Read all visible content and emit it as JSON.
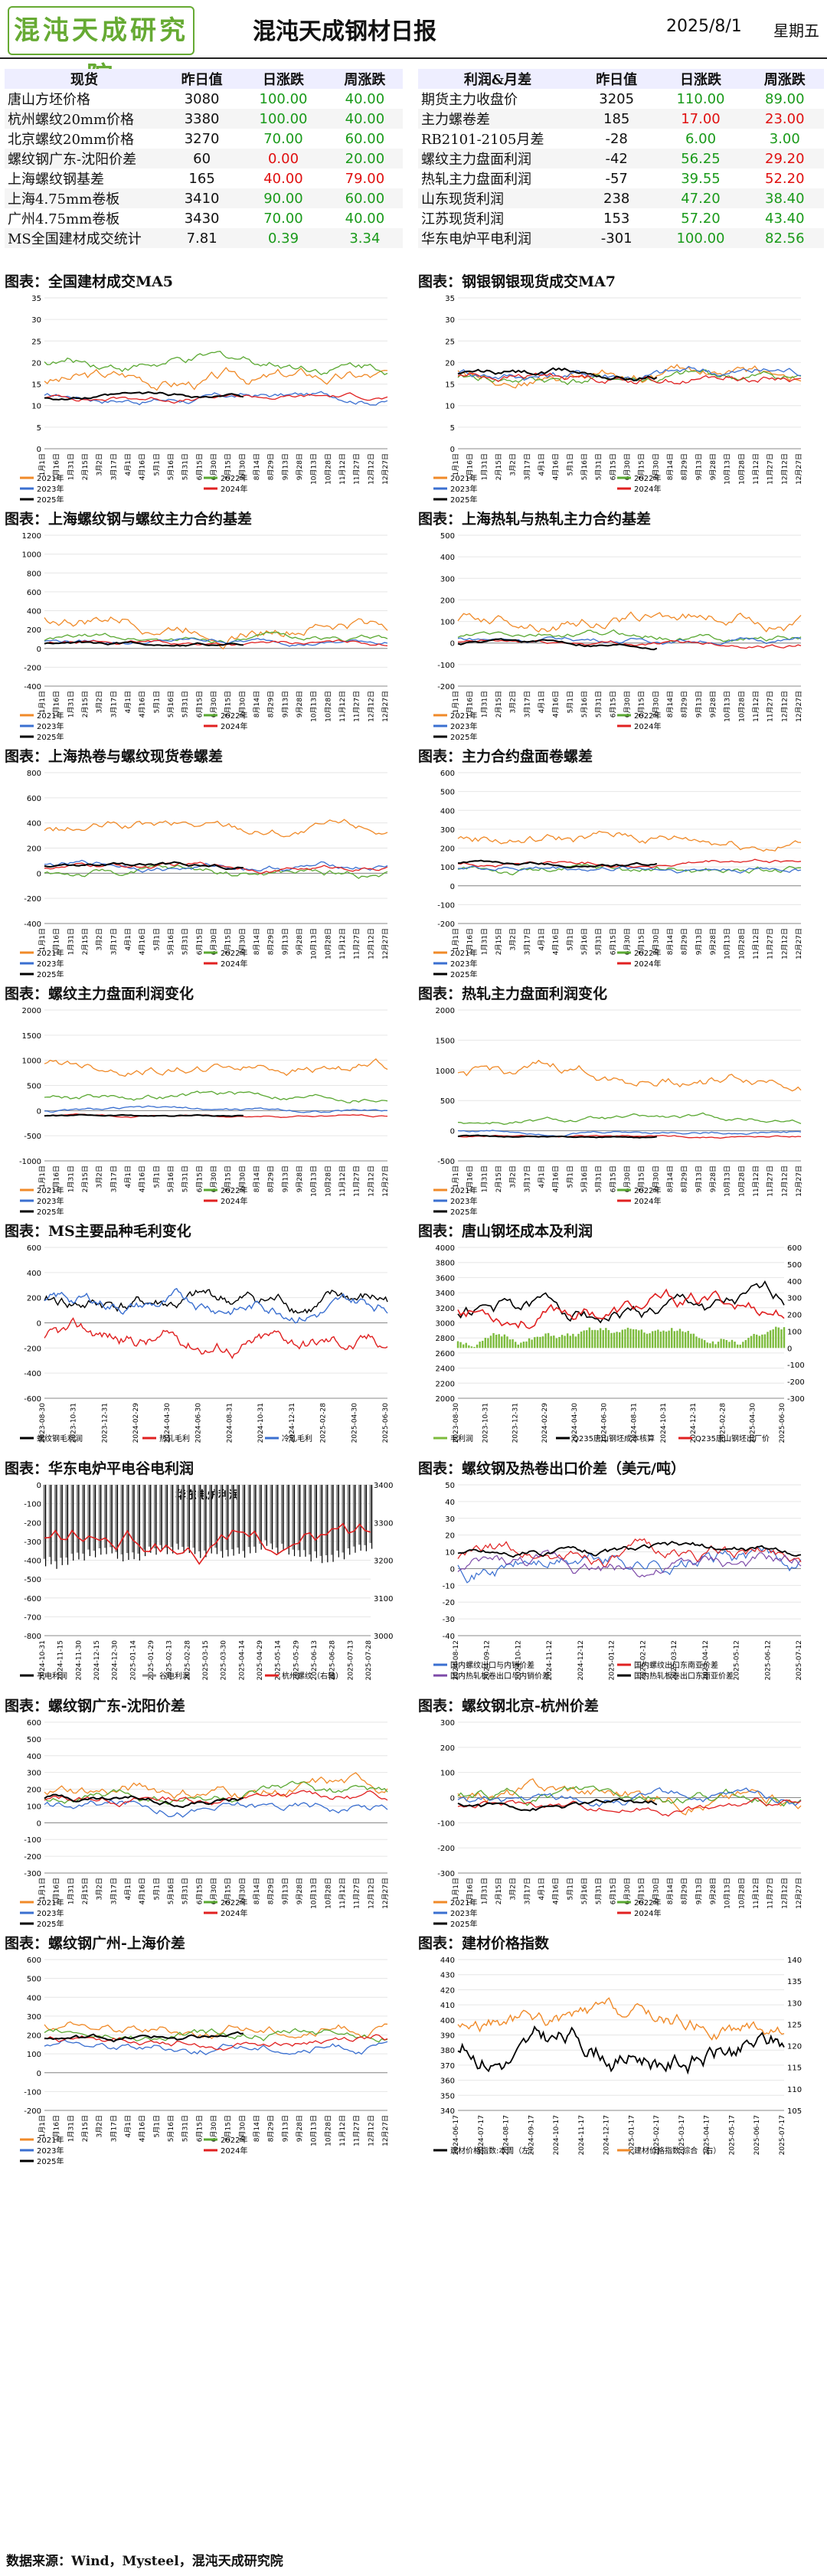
{
  "header": {
    "logo_text": "混沌天成研究院",
    "title": "混沌天成钢材日报",
    "date": "2025/8/1",
    "weekday": "星期五"
  },
  "left_table": {
    "headers": [
      "现货",
      "昨日值",
      "日涨跌",
      "周涨跌"
    ],
    "rows": [
      {
        "name": "唐山方坯价格",
        "value": "3080",
        "day": "100.00",
        "week": "40.00",
        "day_color": "#1a9a1a",
        "week_color": "#1a9a1a"
      },
      {
        "name": "杭州螺纹20mm价格",
        "value": "3380",
        "day": "100.00",
        "week": "40.00",
        "day_color": "#1a9a1a",
        "week_color": "#1a9a1a"
      },
      {
        "name": "北京螺纹20mm价格",
        "value": "3270",
        "day": "70.00",
        "week": "60.00",
        "day_color": "#1a9a1a",
        "week_color": "#1a9a1a"
      },
      {
        "name": "螺纹钢广东-沈阳价差",
        "value": "60",
        "day": "0.00",
        "week": "20.00",
        "day_color": "#e01010",
        "week_color": "#1a9a1a"
      },
      {
        "name": "上海螺纹钢基差",
        "value": "165",
        "day": "40.00",
        "week": "79.00",
        "day_color": "#e01010",
        "week_color": "#e01010"
      },
      {
        "name": "上海4.75mm卷板",
        "value": "3410",
        "day": "90.00",
        "week": "60.00",
        "day_color": "#1a9a1a",
        "week_color": "#1a9a1a"
      },
      {
        "name": "广州4.75mm卷板",
        "value": "3430",
        "day": "70.00",
        "week": "40.00",
        "day_color": "#1a9a1a",
        "week_color": "#1a9a1a"
      },
      {
        "name": "MS全国建材成交统计",
        "value": "7.81",
        "day": "0.39",
        "week": "3.34",
        "day_color": "#1a9a1a",
        "week_color": "#1a9a1a"
      }
    ]
  },
  "right_table": {
    "headers": [
      "利润&月差",
      "昨日值",
      "日涨跌",
      "周涨跌"
    ],
    "rows": [
      {
        "name": "期货主力收盘价",
        "value": "3205",
        "day": "110.00",
        "week": "89.00",
        "day_color": "#1a9a1a",
        "week_color": "#1a9a1a"
      },
      {
        "name": "主力螺卷差",
        "value": "185",
        "day": "17.00",
        "week": "23.00",
        "day_color": "#e01010",
        "week_color": "#e01010"
      },
      {
        "name": "RB2101-2105月差",
        "value": "-28",
        "day": "6.00",
        "week": "3.00",
        "day_color": "#1a9a1a",
        "week_color": "#1a9a1a"
      },
      {
        "name": "螺纹主力盘面利润",
        "value": "-42",
        "day": "56.25",
        "week": "29.20",
        "day_color": "#1a9a1a",
        "week_color": "#e01010"
      },
      {
        "name": "热轧主力盘面利润",
        "value": "-57",
        "day": "39.55",
        "week": "52.20",
        "day_color": "#1a9a1a",
        "week_color": "#e01010"
      },
      {
        "name": "山东现货利润",
        "value": "238",
        "day": "47.20",
        "week": "38.40",
        "day_color": "#1a9a1a",
        "week_color": "#1a9a1a"
      },
      {
        "name": "江苏现货利润",
        "value": "153",
        "day": "57.20",
        "week": "43.40",
        "day_color": "#1a9a1a",
        "week_color": "#1a9a1a"
      },
      {
        "name": "华东电炉平电利润",
        "value": "-301",
        "day": "100.00",
        "week": "82.56",
        "day_color": "#1a9a1a",
        "week_color": "#1a9a1a"
      }
    ]
  },
  "seasonal_legend": [
    "2021年",
    "2022年",
    "2023年",
    "2024年",
    "2025年"
  ],
  "seasonal_colors": [
    "#f08a28",
    "#5aa832",
    "#3a6fd0",
    "#e02020",
    "#000000"
  ],
  "month_ticks": [
    "1月1日",
    "1月16日",
    "1月31日",
    "2月15日",
    "3月2日",
    "3月17日",
    "4月1日",
    "4月16日",
    "5月1日",
    "5月16日",
    "5月31日",
    "6月15日",
    "6月30日",
    "7月15日",
    "7月30日",
    "8月14日",
    "8月29日",
    "9月13日",
    "9月28日",
    "10月13日",
    "10月28日",
    "11月12日",
    "11月27日",
    "12月12日",
    "12月27日"
  ],
  "charts": [
    {
      "id": "c1",
      "title": "图表：全国建材成交MA5",
      "kind": "seasonal",
      "ymin": 0,
      "ymax": 35,
      "yticks": [
        0,
        5,
        10,
        15,
        20,
        25,
        30,
        35
      ],
      "base": [
        16,
        20,
        12,
        12
      ],
      "amp": [
        8,
        6,
        4,
        3
      ]
    },
    {
      "id": "c2",
      "title": "图表：钢银钢银现货成交MA7",
      "kind": "seasonal",
      "ymin": 0,
      "ymax": 35,
      "yticks": [
        0,
        5,
        10,
        15,
        20,
        25,
        30,
        35
      ],
      "base": [
        18,
        16,
        18,
        17
      ],
      "amp": [
        7,
        6,
        6,
        5
      ]
    },
    {
      "id": "c3",
      "title": "图表：上海螺纹钢与螺纹主力合约基差",
      "kind": "seasonal",
      "ymin": -400,
      "ymax": 1200,
      "yticks": [
        -400,
        -200,
        0,
        200,
        400,
        600,
        800,
        1000,
        1200
      ],
      "base": [
        300,
        100,
        80,
        50
      ],
      "amp": [
        350,
        150,
        120,
        100
      ]
    },
    {
      "id": "c4",
      "title": "图表：上海热轧与热轧主力合约基差",
      "kind": "seasonal",
      "ymin": -200,
      "ymax": 500,
      "yticks": [
        -200,
        -100,
        0,
        100,
        200,
        300,
        400,
        500
      ],
      "base": [
        120,
        30,
        20,
        0
      ],
      "amp": [
        150,
        80,
        60,
        50
      ]
    },
    {
      "id": "c5",
      "title": "图表：上海热卷与螺纹现货卷螺差",
      "kind": "seasonal",
      "ymin": -400,
      "ymax": 800,
      "yticks": [
        -400,
        -200,
        0,
        200,
        400,
        600,
        800
      ],
      "base": [
        350,
        0,
        60,
        50
      ],
      "amp": [
        200,
        150,
        120,
        100
      ]
    },
    {
      "id": "c6",
      "title": "图表：主力合约盘面卷螺差",
      "kind": "seasonal",
      "ymin": -200,
      "ymax": 600,
      "yticks": [
        -200,
        -100,
        0,
        100,
        200,
        300,
        400,
        500,
        600
      ],
      "base": [
        250,
        80,
        100,
        120
      ],
      "amp": [
        150,
        100,
        80,
        60
      ]
    },
    {
      "id": "c7",
      "title": "图表：螺纹主力盘面利润变化",
      "kind": "seasonal",
      "ymin": -1000,
      "ymax": 2000,
      "yticks": [
        -1000,
        -500,
        0,
        500,
        1000,
        1500,
        2000
      ],
      "base": [
        900,
        300,
        0,
        -100
      ],
      "amp": [
        500,
        300,
        150,
        100
      ]
    },
    {
      "id": "c8",
      "title": "图表：热轧主力盘面利润变化",
      "kind": "seasonal",
      "ymin": -500,
      "ymax": 2000,
      "yticks": [
        -500,
        0,
        500,
        1000,
        1500,
        2000
      ],
      "base": [
        900,
        150,
        0,
        -100
      ],
      "amp": [
        500,
        200,
        120,
        80
      ]
    },
    {
      "id": "c9",
      "title": "图表：MS主要品种毛利变化",
      "kind": "ms",
      "legend": [
        "螺纹钢毛利润",
        "热轧毛利",
        "冷轧毛利"
      ],
      "colors": [
        "#000000",
        "#e02020",
        "#3a6fd0"
      ],
      "ymin": -600,
      "ymax": 600,
      "yticks": [
        -600,
        -400,
        -200,
        0,
        200,
        400,
        600
      ],
      "xticks": [
        "2023-08-30",
        "2023-10-31",
        "2023-12-31",
        "2024-02-29",
        "2024-04-30",
        "2024-06-30",
        "2024-08-31",
        "2024-10-31",
        "2024-12-31",
        "2025-02-28",
        "2025-04-30",
        "2025-06-30"
      ]
    },
    {
      "id": "c10",
      "title": "图表：唐山钢坯成本及利润",
      "kind": "tangshan",
      "legend": [
        "毛利润",
        "Q235唐山钢坯成本核算",
        "Q235唐山钢坯出厂价"
      ],
      "colors": [
        "#7cbb3c",
        "#000000",
        "#e02020"
      ],
      "ymin": 2000,
      "ymax": 4000,
      "yticks": [
        2000,
        2200,
        2400,
        2600,
        2800,
        3000,
        3200,
        3400,
        3600,
        3800,
        4000
      ],
      "y2min": -300,
      "y2max": 600,
      "y2ticks": [
        -300,
        -200,
        -100,
        0,
        100,
        200,
        300,
        400,
        500,
        600
      ],
      "xticks": [
        "2023-08-30",
        "2023-10-31",
        "2023-12-31",
        "2024-02-29",
        "2024-04-30",
        "2024-06-30",
        "2024-08-31",
        "2024-10-31",
        "2024-12-31",
        "2025-02-28",
        "2025-04-30",
        "2025-06-30"
      ]
    },
    {
      "id": "c11",
      "title": "图表：华东电炉平电谷电利润",
      "kind": "eaf",
      "inner_title": "华东电炉利润",
      "legend": [
        "平电利润",
        "谷电利润",
        "杭州螺纹（右轴）"
      ],
      "colors": [
        "#000000",
        "#888888",
        "#e02020"
      ],
      "ymin": -800,
      "ymax": 0,
      "yticks": [
        -800,
        -700,
        -600,
        -500,
        -400,
        -300,
        -200,
        -100,
        0
      ],
      "y2min": 3000,
      "y2max": 3400,
      "y2ticks": [
        3000,
        3100,
        3200,
        3300,
        3400
      ],
      "xticks": [
        "2024-10-31",
        "2024-11-15",
        "2024-11-30",
        "2024-12-15",
        "2024-12-30",
        "2025-01-14",
        "2025-01-29",
        "2025-02-13",
        "2025-02-28",
        "2025-03-15",
        "2025-03-30",
        "2025-04-14",
        "2025-04-29",
        "2025-05-14",
        "2025-05-29",
        "2025-06-13",
        "2025-06-28",
        "2025-07-13",
        "2025-07-28"
      ]
    },
    {
      "id": "c12",
      "title": "图表：螺纹钢及热卷出口价差（美元/吨）",
      "kind": "export",
      "legend": [
        "国内螺纹出口与内销价差",
        "国内螺纹出口东南亚价差",
        "国内热轧板卷出口与内销价差",
        "国内热轧板卷出口东南亚价差"
      ],
      "colors": [
        "#3a6fd0",
        "#e02020",
        "#7d4aa8",
        "#000000"
      ],
      "ymin": -40,
      "ymax": 50,
      "yticks": [
        -40,
        -30,
        -20,
        -10,
        0,
        10,
        20,
        30,
        40,
        50
      ],
      "xticks": [
        "2024-08-12",
        "2024-09-12",
        "2024-10-12",
        "2024-11-12",
        "2024-12-12",
        "2025-01-12",
        "2025-02-12",
        "2025-03-12",
        "2025-04-12",
        "2025-05-12",
        "2025-06-12",
        "2025-07-12"
      ]
    },
    {
      "id": "c13",
      "title": "图表：螺纹钢广东-沈阳价差",
      "kind": "seasonal",
      "ymin": -300,
      "ymax": 600,
      "yticks": [
        -300,
        -200,
        -100,
        0,
        100,
        200,
        300,
        400,
        500,
        600
      ],
      "base": [
        200,
        150,
        100,
        150
      ],
      "amp": [
        200,
        150,
        150,
        120
      ]
    },
    {
      "id": "c14",
      "title": "图表：螺纹钢北京-杭州价差",
      "kind": "seasonal",
      "ymin": -300,
      "ymax": 300,
      "yticks": [
        -300,
        -200,
        -100,
        0,
        100,
        200,
        300
      ],
      "base": [
        20,
        0,
        -20,
        -30
      ],
      "amp": [
        150,
        120,
        100,
        80
      ]
    },
    {
      "id": "c15",
      "title": "图表：螺纹钢广州-上海价差",
      "kind": "seasonal",
      "ymin": -200,
      "ymax": 600,
      "yticks": [
        -200,
        -100,
        0,
        100,
        200,
        300,
        400,
        500,
        600
      ],
      "base": [
        250,
        200,
        150,
        180
      ],
      "amp": [
        150,
        120,
        120,
        100
      ]
    },
    {
      "id": "c16",
      "title": "图表：建材价格指数",
      "kind": "index",
      "legend": [
        "建材价格指数:本周（左）",
        "建材价格指数:综合（右）"
      ],
      "colors": [
        "#000000",
        "#f08a28"
      ],
      "ymin": 340,
      "ymax": 440,
      "yticks": [
        340,
        350,
        360,
        370,
        380,
        390,
        400,
        410,
        420,
        430,
        440
      ],
      "y2min": 105,
      "y2max": 140,
      "y2ticks": [
        105,
        110,
        115,
        120,
        125,
        130,
        135,
        140
      ],
      "xticks": [
        "2024-06-17",
        "2024-07-17",
        "2024-08-17",
        "2024-09-17",
        "2024-10-17",
        "2024-11-17",
        "2024-12-17",
        "2025-01-17",
        "2025-02-17",
        "2025-03-17",
        "2025-04-17",
        "2025-05-17",
        "2025-06-17",
        "2025-07-17"
      ]
    }
  ],
  "footer": "数据来源：Wind，Mysteel，混沌天成研究院"
}
